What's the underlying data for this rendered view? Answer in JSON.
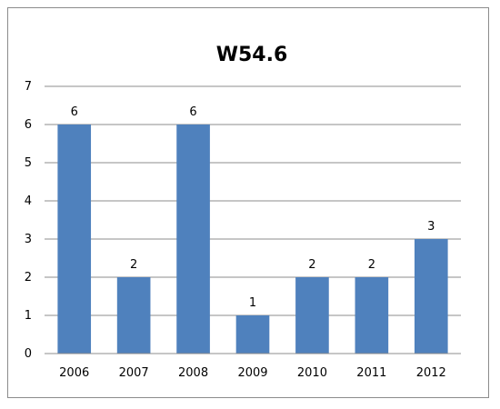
{
  "chart_data": {
    "type": "bar",
    "title": "W54.6",
    "xlabel": "",
    "ylabel": "",
    "categories": [
      "2006",
      "2007",
      "2008",
      "2009",
      "2010",
      "2011",
      "2012"
    ],
    "values": [
      6,
      2,
      6,
      1,
      2,
      2,
      3
    ],
    "data_labels": [
      "6",
      "2",
      "6",
      "1",
      "2",
      "2",
      "3"
    ],
    "ylim": [
      0,
      7
    ],
    "yticks": [
      "0",
      "1",
      "2",
      "3",
      "4",
      "5",
      "6",
      "7"
    ],
    "grid": true,
    "legend": "none",
    "colors": {
      "bar": "#4F81BD",
      "grid": "#8c8c8c",
      "axis": "#8c8c8c"
    }
  }
}
